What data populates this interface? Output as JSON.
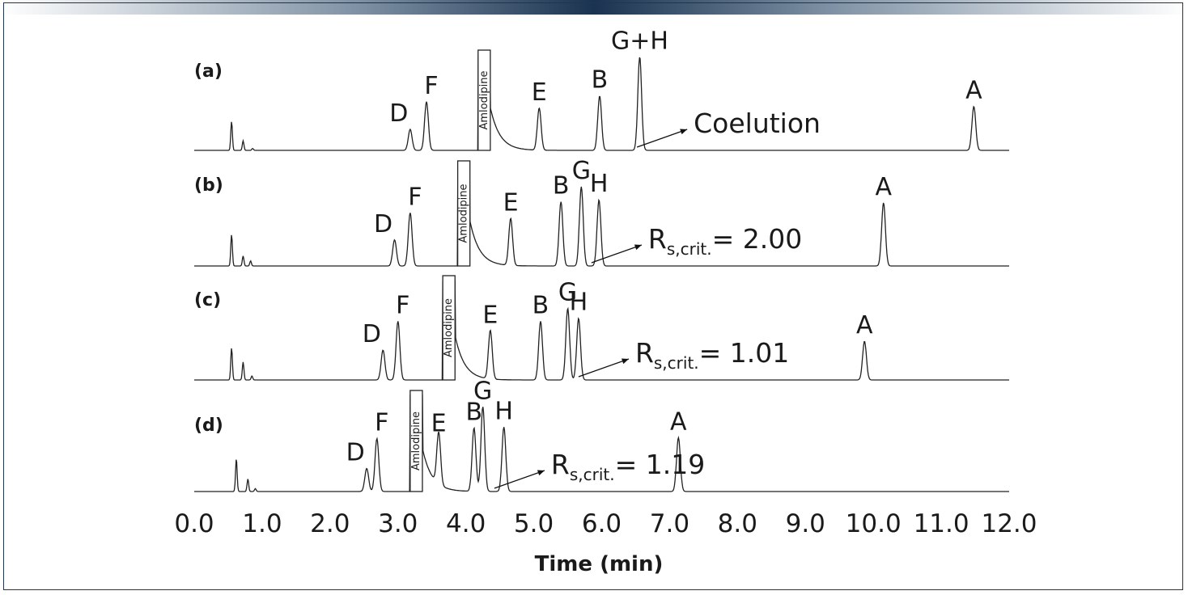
{
  "chart_data": {
    "type": "line",
    "xlabel": "Time (min)",
    "xlim": [
      0.0,
      12.0
    ],
    "x_ticks": [
      "0.0",
      "1.0",
      "2.0",
      "3.0",
      "4.0",
      "5.0",
      "6.0",
      "7.0",
      "8.0",
      "9.0",
      "10.0",
      "11.0",
      "12.0"
    ],
    "line_color": "#222222",
    "panels": [
      {
        "label": "(a)",
        "note": {
          "text": "Coelution",
          "sub": "",
          "suffix": ""
        },
        "note_target_time": 6.52,
        "amlodipine": {
          "label": "Amlodipine",
          "time": 4.2
        },
        "small_peaks": [
          {
            "time": 0.55,
            "height": 0.3
          },
          {
            "time": 0.72,
            "height": 0.1
          },
          {
            "time": 0.86,
            "height": 0.02
          }
        ],
        "peaks": [
          {
            "label": "D",
            "time": 3.18,
            "height": 0.22
          },
          {
            "label": "F",
            "time": 3.42,
            "height": 0.51
          },
          {
            "label": "E",
            "time": 5.08,
            "height": 0.44
          },
          {
            "label": "B",
            "time": 5.97,
            "height": 0.57
          },
          {
            "label": "G+H",
            "time": 6.56,
            "height": 0.98
          },
          {
            "label": "A",
            "time": 11.48,
            "height": 0.46
          }
        ]
      },
      {
        "label": "(b)",
        "note": {
          "text": "R",
          "sub": "s,crit.",
          "suffix": "= 2.00"
        },
        "note_target_time": 5.85,
        "amlodipine": {
          "label": "Amlodipine",
          "time": 3.9
        },
        "small_peaks": [
          {
            "time": 0.55,
            "height": 0.31
          },
          {
            "time": 0.72,
            "height": 0.1
          },
          {
            "time": 0.83,
            "height": 0.05
          }
        ],
        "peaks": [
          {
            "label": "D",
            "time": 2.95,
            "height": 0.26
          },
          {
            "label": "F",
            "time": 3.18,
            "height": 0.53
          },
          {
            "label": "E",
            "time": 4.66,
            "height": 0.47
          },
          {
            "label": "B",
            "time": 5.4,
            "height": 0.64
          },
          {
            "label": "G",
            "time": 5.7,
            "height": 0.79
          },
          {
            "label": "H",
            "time": 5.96,
            "height": 0.66
          },
          {
            "label": "A",
            "time": 10.15,
            "height": 0.63
          }
        ]
      },
      {
        "label": "(c)",
        "note": {
          "text": "R",
          "sub": "s,crit.",
          "suffix": "= 1.01"
        },
        "note_target_time": 5.66,
        "amlodipine": {
          "label": "Amlodipine",
          "time": 3.68
        },
        "small_peaks": [
          {
            "time": 0.55,
            "height": 0.32
          },
          {
            "time": 0.72,
            "height": 0.18
          },
          {
            "time": 0.85,
            "height": 0.04
          }
        ],
        "peaks": [
          {
            "label": "D",
            "time": 2.78,
            "height": 0.3
          },
          {
            "label": "F",
            "time": 3.0,
            "height": 0.59
          },
          {
            "label": "E",
            "time": 4.36,
            "height": 0.49
          },
          {
            "label": "B",
            "time": 5.1,
            "height": 0.59
          },
          {
            "label": "G",
            "time": 5.5,
            "height": 0.72
          },
          {
            "label": "H",
            "time": 5.66,
            "height": 0.62
          },
          {
            "label": "A",
            "time": 9.87,
            "height": 0.39
          }
        ]
      },
      {
        "label": "(d)",
        "note": {
          "text": "R",
          "sub": "s,crit.",
          "suffix": "= 1.19"
        },
        "note_target_time": 4.42,
        "amlodipine": {
          "label": "Amlodipine",
          "time": 3.2
        },
        "small_peaks": [
          {
            "time": 0.62,
            "height": 0.34
          },
          {
            "time": 0.79,
            "height": 0.13
          },
          {
            "time": 0.9,
            "height": 0.03
          }
        ],
        "peaks": [
          {
            "label": "D",
            "time": 2.54,
            "height": 0.24
          },
          {
            "label": "F",
            "time": 2.69,
            "height": 0.55
          },
          {
            "label": "E",
            "time": 3.6,
            "height": 0.54
          },
          {
            "label": "B",
            "time": 4.12,
            "height": 0.66
          },
          {
            "label": "G",
            "time": 4.25,
            "height": 0.88
          },
          {
            "label": "H",
            "time": 4.56,
            "height": 0.67
          },
          {
            "label": "A",
            "time": 7.13,
            "height": 0.56
          }
        ]
      }
    ]
  }
}
